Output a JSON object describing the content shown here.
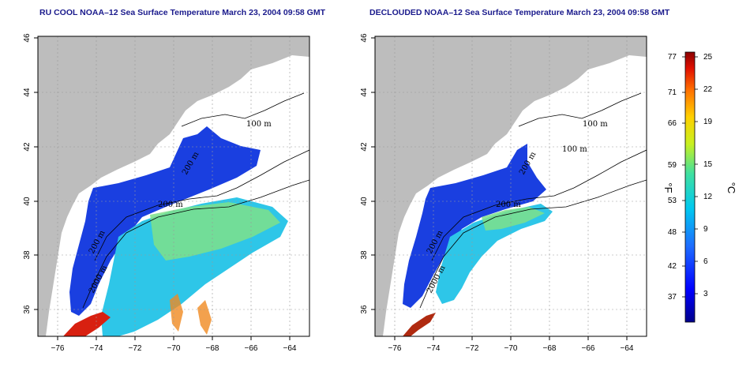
{
  "maps": [
    {
      "title": "RU COOL NOAA–12 Sea Surface Temperature March 23, 2004 09:58 GMT",
      "x_ticks": [
        "−76",
        "−74",
        "−72",
        "−70",
        "−68",
        "−66",
        "−64"
      ],
      "y_ticks": [
        "46",
        "44",
        "42",
        "40",
        "38",
        "36"
      ],
      "contour_labels": [
        "100 m",
        "200 m",
        "200 m",
        "2000 m",
        "200 m"
      ]
    },
    {
      "title": "DECLOUDED NOAA–12 Sea Surface Temperature March 23, 2004 09:58 GMT",
      "x_ticks": [
        "−76",
        "−74",
        "−72",
        "−70",
        "−68",
        "−66",
        "−64"
      ],
      "y_ticks": [
        "46",
        "44",
        "42",
        "40",
        "38",
        "36"
      ],
      "contour_labels": [
        "100 m",
        "100 m",
        "200 m",
        "200 m",
        "2000 m",
        "200 m"
      ]
    }
  ],
  "colorbar": {
    "fahrenheit_label": "°F",
    "celsius_label": "°C",
    "fahrenheit_ticks": [
      "77",
      "71",
      "66",
      "59",
      "53",
      "48",
      "42",
      "37"
    ],
    "celsius_ticks": [
      "25",
      "22",
      "19",
      "15",
      "12",
      "9",
      "6",
      "3"
    ]
  },
  "colors": {
    "land": "#bdbdbd",
    "no_data": "#ffffff",
    "title": "#1a1a8c"
  }
}
